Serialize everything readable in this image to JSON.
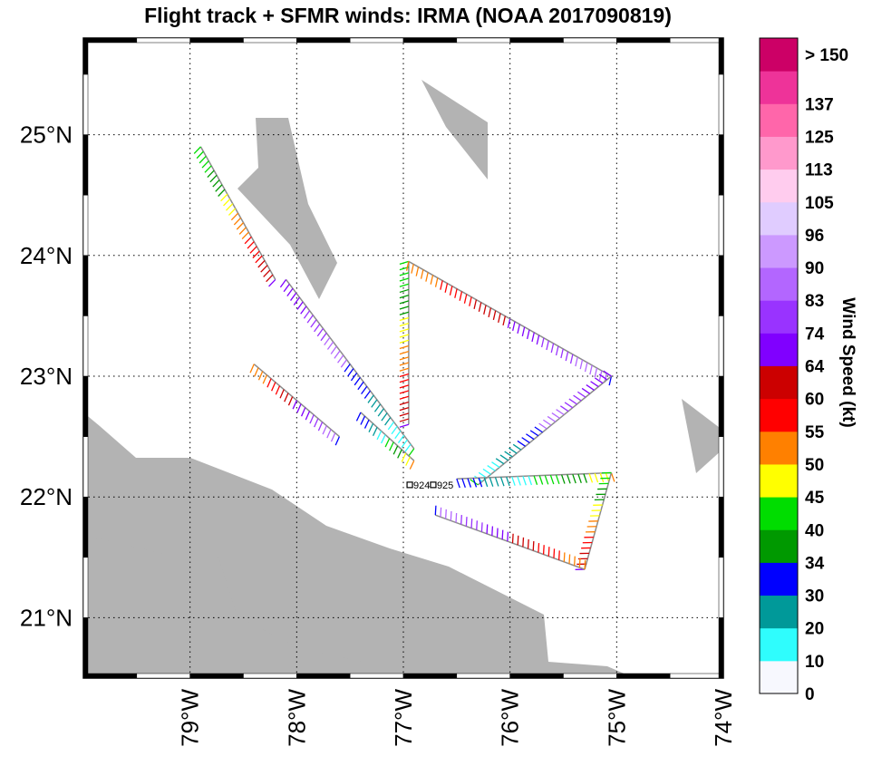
{
  "title": "Flight track + SFMR winds: IRMA (NOAA 2017090819)",
  "map": {
    "lon_range": [
      -80.0,
      -74.0
    ],
    "lat_range": [
      20.5,
      25.8
    ],
    "lat_ticks": [
      {
        "value": 21,
        "label": "21°N"
      },
      {
        "value": 22,
        "label": "22°N"
      },
      {
        "value": 23,
        "label": "23°N"
      },
      {
        "value": 24,
        "label": "24°N"
      },
      {
        "value": 25,
        "label": "25°N"
      }
    ],
    "lon_ticks": [
      {
        "value": -79,
        "label": "79°W"
      },
      {
        "value": -78,
        "label": "78°W"
      },
      {
        "value": -77,
        "label": "77°W"
      },
      {
        "value": -76,
        "label": "76°W"
      },
      {
        "value": -75,
        "label": "75°W"
      },
      {
        "value": -74,
        "label": "74°W"
      }
    ],
    "grid": true,
    "land_color": "#b3b3b3",
    "track_color": "#8c8c8c",
    "center_fixes": [
      {
        "label": "924",
        "lon": -76.94,
        "lat": 22.1
      },
      {
        "label": "925",
        "lon": -76.72,
        "lat": 22.1
      }
    ]
  },
  "flight_legs": [
    {
      "from": [
        -78.9,
        24.9
      ],
      "to": [
        -78.2,
        23.8
      ]
    },
    {
      "from": [
        -78.4,
        23.1
      ],
      "to": [
        -77.6,
        22.5
      ]
    },
    {
      "from": [
        -78.1,
        23.8
      ],
      "to": [
        -76.9,
        22.4
      ]
    },
    {
      "from": [
        -77.4,
        22.7
      ],
      "to": [
        -76.9,
        22.3
      ]
    },
    {
      "from": [
        -76.95,
        23.95
      ],
      "to": [
        -76.95,
        22.6
      ]
    },
    {
      "from": [
        -76.95,
        23.95
      ],
      "to": [
        -75.05,
        23.0
      ]
    },
    {
      "from": [
        -75.05,
        23.0
      ],
      "to": [
        -76.3,
        22.1
      ]
    },
    {
      "from": [
        -76.5,
        22.15
      ],
      "to": [
        -75.05,
        22.2
      ]
    },
    {
      "from": [
        -75.05,
        22.2
      ],
      "to": [
        -75.3,
        21.4
      ]
    },
    {
      "from": [
        -75.3,
        21.4
      ],
      "to": [
        -76.7,
        21.85
      ]
    }
  ],
  "colorbar": {
    "title": "Wind Speed (kt)",
    "bins": [
      {
        "label": "0",
        "color": "#f7f8fe"
      },
      {
        "label": "10",
        "color": "#2ffdfd"
      },
      {
        "label": "20",
        "color": "#009999"
      },
      {
        "label": "30",
        "color": "#0000ff"
      },
      {
        "label": "34",
        "color": "#009900"
      },
      {
        "label": "40",
        "color": "#00dd00"
      },
      {
        "label": "45",
        "color": "#ffff00"
      },
      {
        "label": "50",
        "color": "#ff8000"
      },
      {
        "label": "55",
        "color": "#ff0000"
      },
      {
        "label": "60",
        "color": "#cc0000"
      },
      {
        "label": "64",
        "color": "#8000ff"
      },
      {
        "label": "74",
        "color": "#9933ff"
      },
      {
        "label": "83",
        "color": "#b366ff"
      },
      {
        "label": "90",
        "color": "#cc99ff"
      },
      {
        "label": "96",
        "color": "#e0ccff"
      },
      {
        "label": "105",
        "color": "#ffccee"
      },
      {
        "label": "113",
        "color": "#ff99cc"
      },
      {
        "label": "125",
        "color": "#ff66aa"
      },
      {
        "label": "137",
        "color": "#ee3399"
      },
      {
        "label": "> 150",
        "color": "#cc0066"
      }
    ]
  }
}
